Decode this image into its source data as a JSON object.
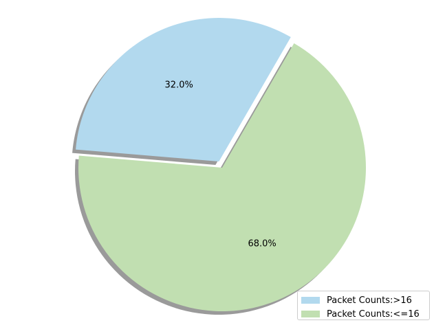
{
  "chart_data": {
    "type": "pie",
    "slices": [
      {
        "label": "Packet Counts:>16",
        "value": 32.0,
        "percent_label": "32.0%",
        "color": "#b2d9ee",
        "exploded": true
      },
      {
        "label": "Packet Counts:<=16",
        "value": 68.0,
        "percent_label": "68.0%",
        "color": "#c1dfb1",
        "exploded": false
      }
    ],
    "shadow": true,
    "shadow_color": "#9a9a9a",
    "legend_position": "lower-right",
    "title": ""
  },
  "legend": {
    "items": [
      {
        "label": "Packet Counts:>16",
        "color": "#b2d9ee"
      },
      {
        "label": "Packet Counts:<=16",
        "color": "#c1dfb1"
      }
    ]
  }
}
